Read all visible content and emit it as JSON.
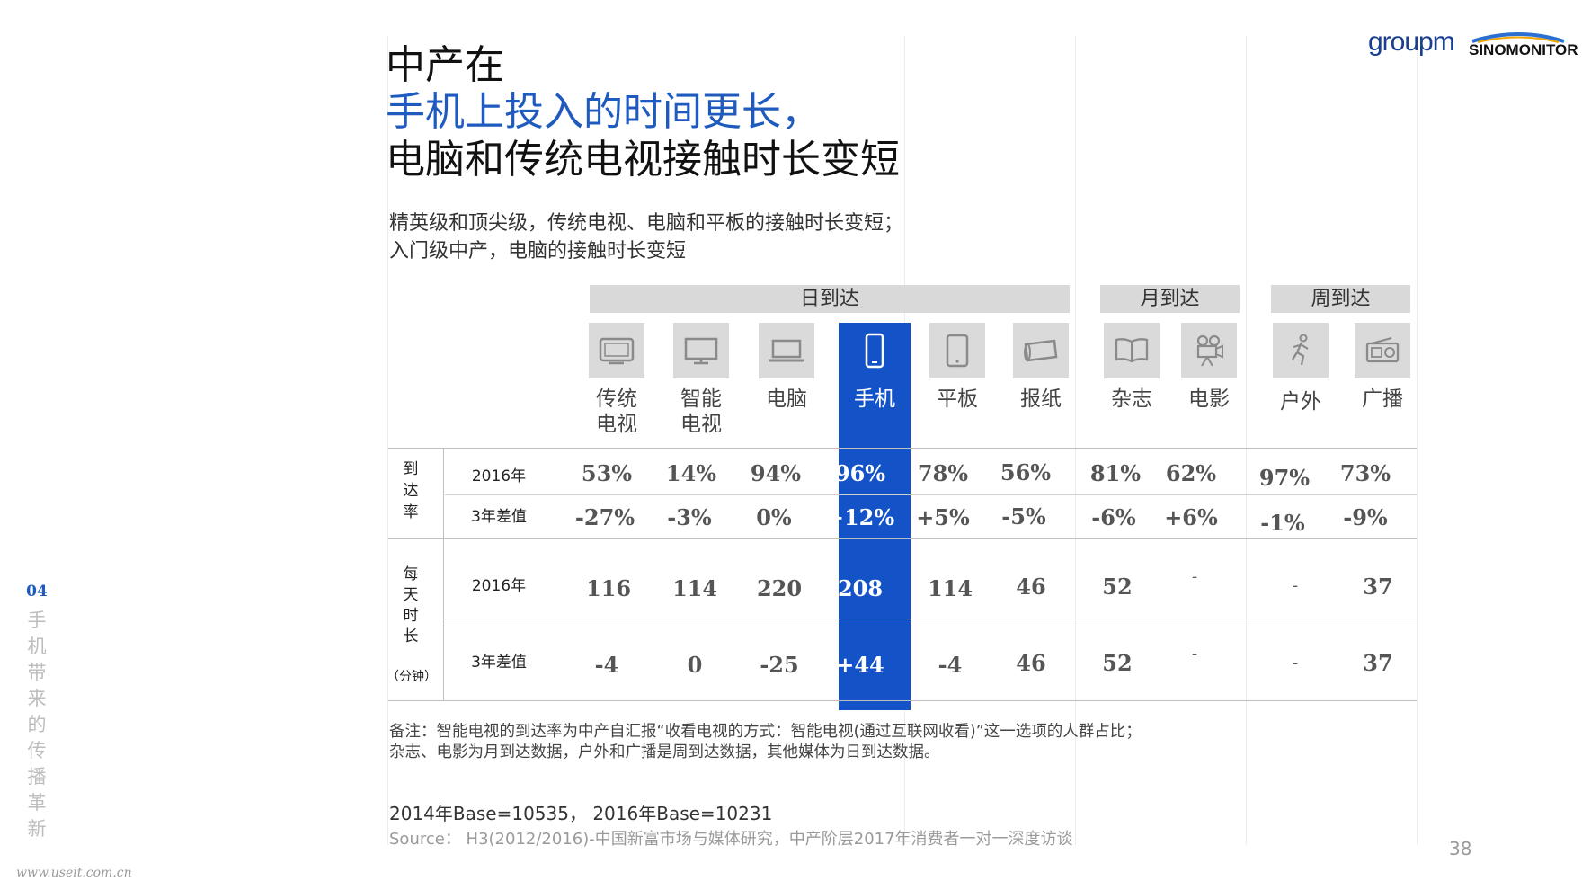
{
  "title": {
    "line1": "中产在",
    "line2": "手机上投入的时间更长，",
    "line3": "电脑和传统电视接触时长变短"
  },
  "subtitle": {
    "line1": "精英级和顶尖级，传统电视、电脑和平板的接触时长变短；",
    "line2": "入门级中产，电脑的接触时长变短"
  },
  "logos": {
    "groupm": "groupm",
    "sinomonitor": "SINOMONITOR"
  },
  "groups": {
    "daily": "日到达",
    "monthly": "月到达",
    "weekly": "周到达"
  },
  "media": [
    {
      "icon": "tv-icon",
      "l1": "传统",
      "l2": "电视"
    },
    {
      "icon": "smart-tv-icon",
      "l1": "智能",
      "l2": "电视"
    },
    {
      "icon": "laptop-icon",
      "l1": "电脑",
      "l2": ""
    },
    {
      "icon": "mobile-phone-icon",
      "l1": "手机",
      "l2": ""
    },
    {
      "icon": "tablet-icon",
      "l1": "平板",
      "l2": ""
    },
    {
      "icon": "newspaper-icon",
      "l1": "报纸",
      "l2": ""
    },
    {
      "icon": "magazine-icon",
      "l1": "杂志",
      "l2": ""
    },
    {
      "icon": "film-camera-icon",
      "l1": "电影",
      "l2": ""
    },
    {
      "icon": "outdoor-runner-icon",
      "l1": "户外",
      "l2": ""
    },
    {
      "icon": "radio-icon",
      "l1": "广播",
      "l2": ""
    }
  ],
  "sections": {
    "reach": {
      "label": [
        "到",
        "达",
        "率"
      ],
      "row1": "2016年",
      "row2": "3年差值"
    },
    "time": {
      "label": [
        "每",
        "天",
        "时",
        "长"
      ],
      "unit": "（分钟）",
      "row1": "2016年",
      "row2": "3年差值"
    }
  },
  "table": {
    "reach2016": [
      "53%",
      "14%",
      "94%",
      "96%",
      "78%",
      "56%",
      "81%",
      "62%",
      "97%",
      "73%"
    ],
    "reachDiff": [
      "-27%",
      "-3%",
      "0%",
      "+12%",
      "+5%",
      "-5%",
      "-6%",
      "+6%",
      "-1%",
      "-9%"
    ],
    "time2016": [
      "116",
      "114",
      "220",
      "208",
      "114",
      "46",
      "52",
      "-",
      "-",
      "37"
    ],
    "timeDiff": [
      "-4",
      "0",
      "-25",
      "+44",
      "-4",
      "46",
      "52",
      "-",
      "-",
      "37"
    ]
  },
  "notes": {
    "line1": "备注：智能电视的到达率为中产自汇报“收看电视的方式：智能电视(通过互联网收看)”这一选项的人群占比；",
    "line2": "杂志、电影为月到达数据，户外和广播是周到达数据，其他媒体为日到达数据。"
  },
  "base": "2014年Base=10535， 2016年Base=10231",
  "source": "Source： H3(2012/2016)-中国新富市场与媒体研究，中产阶层2017年消费者一对一深度访谈",
  "page_number": "38",
  "side_nav": {
    "number": "04",
    "chars": [
      "手",
      "机",
      "带",
      "来",
      "的",
      "传",
      "播",
      "革",
      "新"
    ]
  },
  "watermark": "www.useit.com.cn",
  "colors": {
    "accent": "#1352c7",
    "title_blue": "#1f5bbf"
  }
}
